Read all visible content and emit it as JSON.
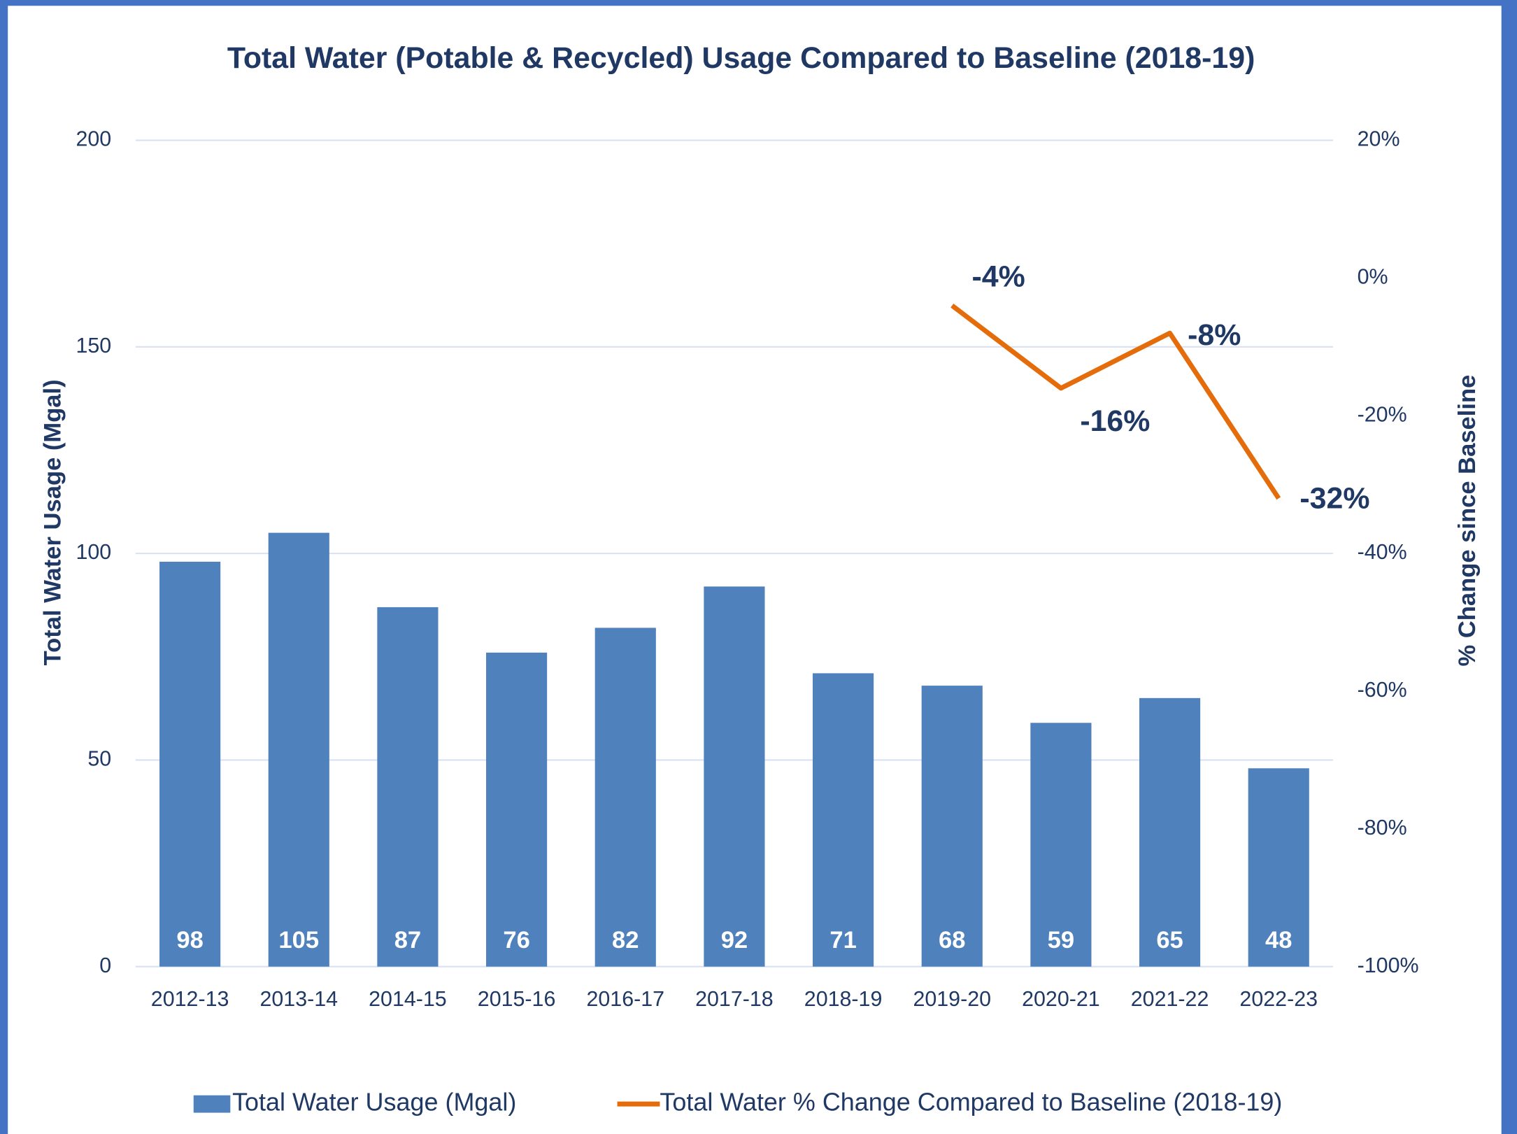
{
  "chart_data": {
    "type": "bar",
    "title": "Total Water (Potable & Recycled) Usage Compared to Baseline (2018-19)",
    "y_label": "Total Water Usage (Mgal)",
    "y2_label": "% Change since Baseline",
    "categories": [
      "2012-13",
      "2013-14",
      "2014-15",
      "2015-16",
      "2016-17",
      "2017-18",
      "2018-19",
      "2019-20",
      "2020-21",
      "2021-22",
      "2022-23"
    ],
    "series": [
      {
        "name": "Total Water Usage (Mgal)",
        "type": "bar",
        "color": "#4f81bd",
        "values": [
          98,
          105,
          87,
          76,
          82,
          92,
          71,
          68,
          59,
          65,
          48
        ]
      },
      {
        "name": "Total Water % Change Compared to Baseline (2018-19)",
        "type": "line",
        "axis": "y2",
        "color": "#e46c0a",
        "values": [
          null,
          null,
          null,
          null,
          null,
          null,
          null,
          -4,
          -16,
          -8,
          -32
        ],
        "value_labels": [
          null,
          null,
          null,
          null,
          null,
          null,
          null,
          "-4%",
          "-16%",
          "-8%",
          "-32%"
        ]
      }
    ],
    "ylim": [
      0,
      200
    ],
    "yticks": [
      0,
      50,
      100,
      150,
      200
    ],
    "y2lim": [
      -100,
      20
    ],
    "y2ticks": [
      {
        "value": -100,
        "label": "-100%"
      },
      {
        "value": -80,
        "label": "-80%"
      },
      {
        "value": -60,
        "label": "-60%"
      },
      {
        "value": -40,
        "label": "-40%"
      },
      {
        "value": -20,
        "label": "-20%"
      },
      {
        "value": 0,
        "label": "0%"
      },
      {
        "value": 20,
        "label": "20%"
      }
    ],
    "grid": true,
    "legend": "bottom"
  }
}
